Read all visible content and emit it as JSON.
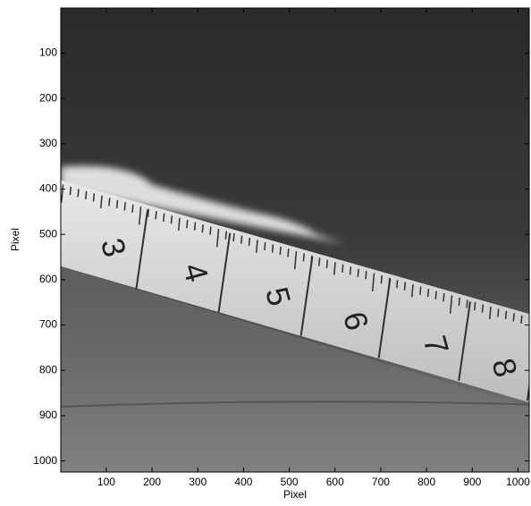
{
  "chart_data": {
    "type": "image",
    "xlabel": "Pixel",
    "ylabel": "Pixel",
    "xlim": [
      0.5,
      1024.5
    ],
    "ylim": [
      0.5,
      1024.5
    ],
    "y_reversed": true,
    "xticks": [
      100,
      200,
      300,
      400,
      500,
      600,
      700,
      800,
      900,
      1000
    ],
    "yticks": [
      100,
      200,
      300,
      400,
      500,
      600,
      700,
      800,
      900,
      1000
    ],
    "ruler_labels": [
      "3",
      "4",
      "5",
      "6",
      "7",
      "8"
    ]
  }
}
